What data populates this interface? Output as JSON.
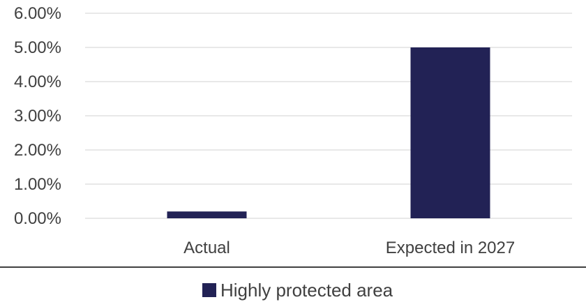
{
  "chart_data": {
    "type": "bar",
    "categories": [
      "Actual",
      "Expected in 2027"
    ],
    "series": [
      {
        "name": "Highly protected area",
        "values": [
          0.002,
          0.05
        ],
        "color": "#222255"
      }
    ],
    "ylim": [
      0,
      0.06
    ],
    "yticks": [
      0,
      0.01,
      0.02,
      0.03,
      0.04,
      0.05,
      0.06
    ],
    "ytick_labels": [
      "0.00%",
      "1.00%",
      "2.00%",
      "3.00%",
      "4.00%",
      "5.00%",
      "6.00%"
    ],
    "grid": true,
    "grid_color": "#d9d9d9",
    "axis_line_color": "#000000",
    "text_color": "#404040",
    "legend_position": "bottom"
  }
}
